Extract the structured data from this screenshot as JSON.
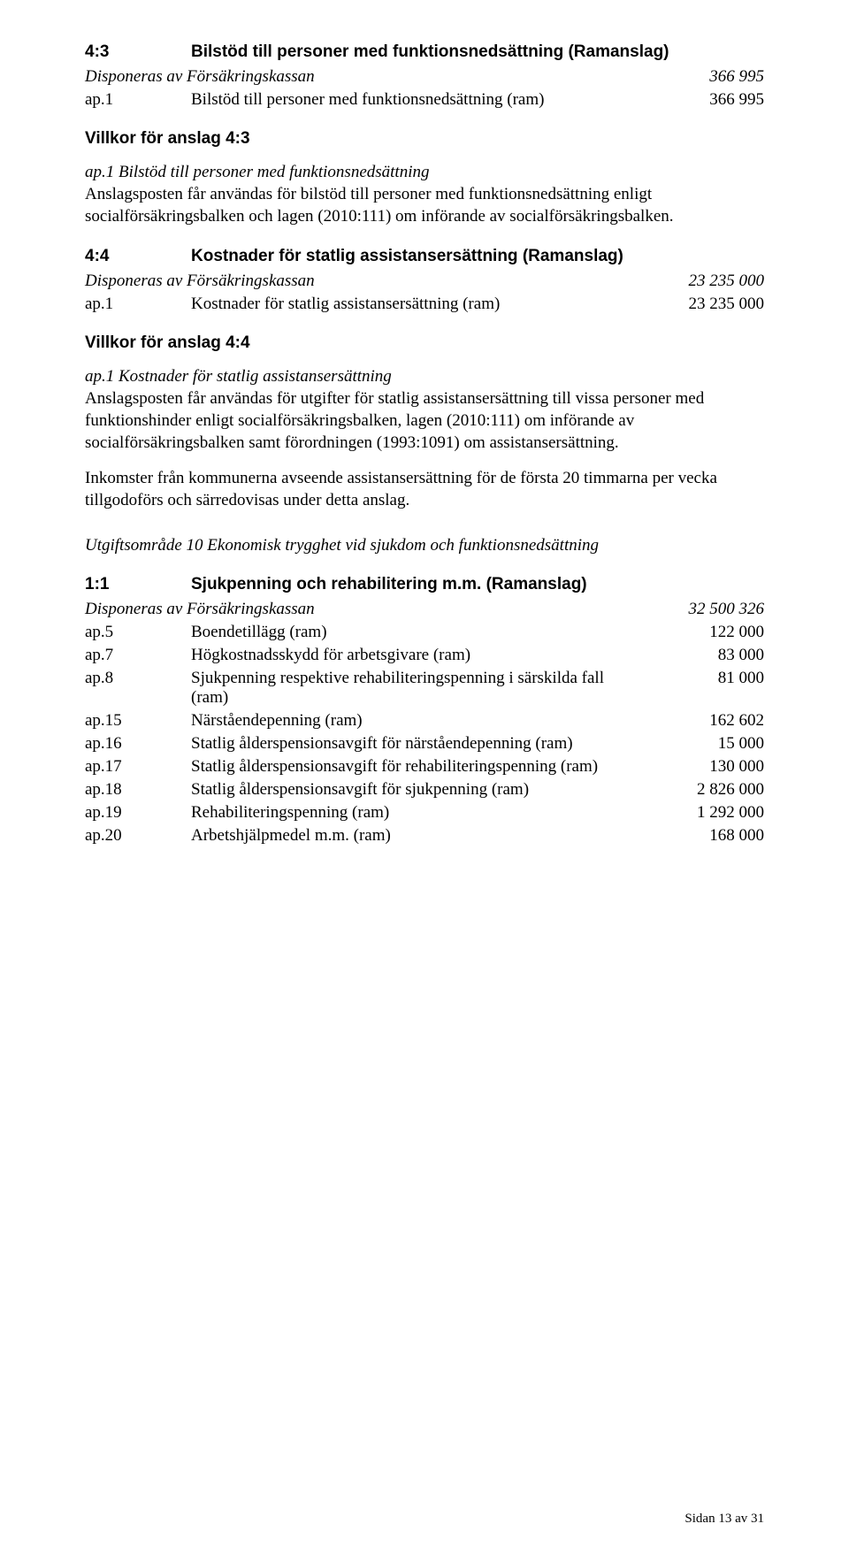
{
  "s43": {
    "num": "4:3",
    "title": "Bilstöd till personer med funktionsnedsättning (Ramanslag)",
    "disp_label": "Disponeras av Försäkringskassan",
    "disp_val": "366 995",
    "ap": {
      "num": "ap.1",
      "label": "Bilstöd till personer med funktionsnedsättning (ram)",
      "val": "366 995"
    },
    "villkor": "Villkor för anslag 4:3",
    "para_title": "ap.1 Bilstöd till personer med funktionsnedsättning",
    "para_body": "Anslagsposten får användas för bilstöd till personer med funktionsnedsättning enligt socialförsäkringsbalken och lagen (2010:111) om införande av socialförsäkringsbalken."
  },
  "s44": {
    "num": "4:4",
    "title": "Kostnader för statlig assistansersättning (Ramanslag)",
    "disp_label": "Disponeras av Försäkringskassan",
    "disp_val": "23 235 000",
    "ap": {
      "num": "ap.1",
      "label": "Kostnader för statlig assistansersättning (ram)",
      "val": "23 235 000"
    },
    "villkor": "Villkor för anslag 4:4",
    "para_title": "ap.1 Kostnader för statlig assistansersättning",
    "para_body": "Anslagsposten får användas för utgifter för statlig assistansersättning till vissa personer med funktionshinder enligt socialförsäkringsbalken, lagen (2010:111) om införande av socialförsäkringsbalken  samt förordningen (1993:1091) om assistansersättning.",
    "para2": "Inkomster från kommunerna avseende assistansersättning för de första 20 timmarna per vecka tillgodoförs och särredovisas under detta anslag."
  },
  "area_heading": "Utgiftsområde 10 Ekonomisk trygghet vid sjukdom och funktionsnedsättning",
  "s11": {
    "num": "1:1",
    "title": "Sjukpenning och rehabilitering m.m. (Ramanslag)",
    "disp_label": "Disponeras av Försäkringskassan",
    "disp_val": "32 500 326",
    "aps": [
      {
        "num": "ap.5",
        "label": "Boendetillägg (ram)",
        "val": "122 000"
      },
      {
        "num": "ap.7",
        "label": "Högkostnadsskydd för arbetsgivare (ram)",
        "val": "83 000"
      },
      {
        "num": "ap.8",
        "label": "Sjukpenning respektive rehabiliteringspenning i särskilda fall (ram)",
        "val": "81 000"
      },
      {
        "num": "ap.15",
        "label": "Närståendepenning (ram)",
        "val": "162 602"
      },
      {
        "num": "ap.16",
        "label": "Statlig ålderspensionsavgift för närståendepenning (ram)",
        "val": "15 000"
      },
      {
        "num": "ap.17",
        "label": "Statlig ålderspensionsavgift för rehabiliteringspenning (ram)",
        "val": "130 000"
      },
      {
        "num": "ap.18",
        "label": "Statlig ålderspensionsavgift för sjukpenning (ram)",
        "val": "2 826 000"
      },
      {
        "num": "ap.19",
        "label": "Rehabiliteringspenning (ram)",
        "val": "1 292 000"
      },
      {
        "num": "ap.20",
        "label": "Arbetshjälpmedel m.m. (ram)",
        "val": "168 000"
      }
    ]
  },
  "footer": "Sidan 13 av 31"
}
